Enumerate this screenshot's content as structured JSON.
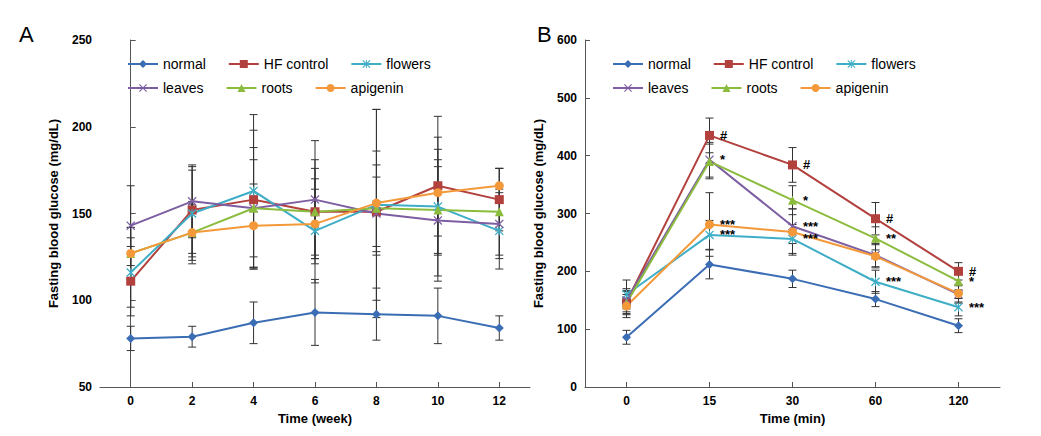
{
  "chart_data": [
    {
      "type": "line",
      "title": "A",
      "x_label": "Time (week)",
      "y_label": "Fasting blood glucose (mg/dL)",
      "x": [
        0,
        2,
        4,
        6,
        8,
        10,
        12
      ],
      "xlim": [
        -1,
        13
      ],
      "xticks": [
        0,
        2,
        4,
        6,
        8,
        10,
        12
      ],
      "ylim": [
        50,
        250
      ],
      "yticks": [
        50,
        100,
        150,
        200,
        250
      ],
      "grid": false,
      "legend": "top",
      "series": [
        {
          "name": "normal",
          "color": "#3b6db4",
          "marker": "diamond",
          "values": [
            78,
            79,
            87,
            93,
            92,
            91,
            84
          ],
          "errors": [
            7,
            6,
            12,
            19,
            15,
            16,
            7
          ]
        },
        {
          "name": "HF control",
          "color": "#b2403d",
          "marker": "square",
          "values": [
            111,
            152,
            158,
            151,
            151,
            166,
            158
          ],
          "errors": [
            20,
            25,
            40,
            25,
            20,
            40,
            18
          ]
        },
        {
          "name": "flowers",
          "color": "#3eaec6",
          "marker": "asterisk",
          "values": [
            116,
            150,
            163,
            140,
            155,
            154,
            140
          ],
          "errors": [
            20,
            25,
            44,
            30,
            55,
            40,
            22
          ]
        },
        {
          "name": "leaves",
          "color": "#7d5ea2",
          "marker": "x",
          "values": [
            143,
            157,
            153,
            158,
            150,
            146,
            144
          ],
          "errors": [
            23,
            21,
            35,
            34,
            60,
            35,
            20
          ]
        },
        {
          "name": "roots",
          "color": "#8cbc3e",
          "marker": "triangle",
          "values": [
            127,
            139,
            153,
            151,
            153,
            152,
            151
          ],
          "errors": [
            15,
            18,
            28,
            30,
            25,
            25,
            25
          ]
        },
        {
          "name": "apigenin",
          "color": "#f3993a",
          "marker": "circle",
          "values": [
            127,
            139,
            143,
            144,
            156,
            162,
            166
          ],
          "errors": [
            15,
            16,
            24,
            20,
            30,
            25,
            10
          ]
        }
      ]
    },
    {
      "type": "line",
      "title": "B",
      "x_label": "Time (min)",
      "y_label": "Fasting blood glucose (mg/dL)",
      "categories": [
        "0",
        "15",
        "30",
        "60",
        "120"
      ],
      "ylim": [
        0,
        600
      ],
      "yticks": [
        0,
        100,
        200,
        300,
        400,
        500,
        600
      ],
      "grid": false,
      "legend": "top",
      "series": [
        {
          "name": "normal",
          "color": "#3b6db4",
          "marker": "diamond",
          "values": [
            86,
            212,
            187,
            152,
            106
          ],
          "errors": [
            12,
            25,
            15,
            13,
            12
          ],
          "significance": [
            null,
            null,
            null,
            null,
            null
          ]
        },
        {
          "name": "HF control",
          "color": "#b2403d",
          "marker": "square",
          "values": [
            147,
            435,
            384,
            291,
            200
          ],
          "errors": [
            20,
            30,
            30,
            28,
            15
          ],
          "significance": [
            null,
            "#",
            "#",
            "#",
            "#"
          ]
        },
        {
          "name": "flowers",
          "color": "#3eaec6",
          "marker": "asterisk",
          "values": [
            160,
            263,
            256,
            182,
            138
          ],
          "errors": [
            25,
            25,
            25,
            20,
            15
          ],
          "significance": [
            null,
            "***",
            "***",
            "***",
            "***"
          ]
        },
        {
          "name": "leaves",
          "color": "#7d5ea2",
          "marker": "x",
          "values": [
            150,
            393,
            278,
            228,
            160
          ],
          "errors": [
            20,
            30,
            30,
            20,
            15
          ],
          "significance": [
            null,
            "*",
            "***",
            null,
            null
          ]
        },
        {
          "name": "roots",
          "color": "#8cbc3e",
          "marker": "triangle",
          "values": [
            145,
            390,
            323,
            257,
            183
          ],
          "errors": [
            20,
            30,
            25,
            20,
            15
          ],
          "significance": [
            null,
            null,
            "*",
            "**",
            "*"
          ]
        },
        {
          "name": "apigenin",
          "color": "#f3993a",
          "marker": "circle",
          "values": [
            140,
            281,
            268,
            226,
            162
          ],
          "errors": [
            20,
            55,
            40,
            20,
            15
          ],
          "significance": [
            null,
            "***",
            null,
            null,
            null
          ]
        }
      ]
    }
  ]
}
